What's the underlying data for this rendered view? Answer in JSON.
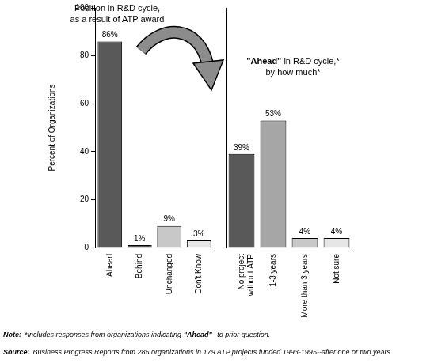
{
  "chart_data": [
    {
      "type": "bar",
      "title": [
        "Position in R&D cycle,",
        "as a result of ATP award"
      ],
      "ylabel": "Percent of Organizations",
      "categories": [
        "Ahead",
        "Behind",
        "Unchanged",
        "Don't Know"
      ],
      "values": [
        86,
        1,
        9,
        3
      ],
      "value_labels": [
        "86%",
        "1%",
        "9%",
        "3%"
      ],
      "colors": [
        "#595959",
        "#595959",
        "#c8c8c8",
        "#e6e6e6"
      ],
      "ylim": [
        0,
        100
      ],
      "yticks": [
        0,
        20,
        40,
        60,
        80,
        100
      ],
      "data_labels": true
    },
    {
      "type": "bar",
      "title": [
        "\"Ahead\" in R&D cycle,*",
        "by how much*"
      ],
      "categories": [
        "No project without ATP",
        "1-3 years",
        "More than 3 years",
        "Not sure"
      ],
      "values": [
        39,
        53,
        4,
        4
      ],
      "value_labels": [
        "39%",
        "53%",
        "4%",
        "4%"
      ],
      "colors": [
        "#595959",
        "#a6a6a6",
        "#c8c8c8",
        "#e6e6e6"
      ],
      "ylim": [
        0,
        100
      ],
      "tick_labels": "x",
      "data_labels": true
    }
  ],
  "notes": [
    {
      "label": "Note:",
      "text": "*Includes responses from organizations indicating \"Ahead\" to prior question."
    },
    {
      "label": "Source:",
      "text": "Business Progress Reports from 285 organizations in 179 ATP projects funded 1993-1995--after one or two years."
    }
  ]
}
